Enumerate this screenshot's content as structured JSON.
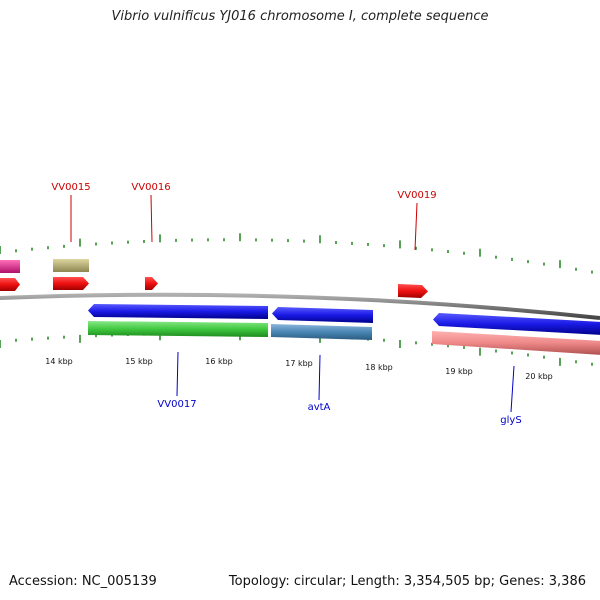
{
  "title": "Vibrio vulnificus YJ016 chromosome I, complete sequence",
  "footer": {
    "accession": "Accession: NC_005139",
    "summary": "Topology: circular; Length: 3,354,505 bp; Genes: 3,386"
  },
  "colors": {
    "backbone": "#7a7a7a",
    "tick": "#2e8b2e",
    "label_red": "#cc0000",
    "label_blue": "#0000cc",
    "label_dark": "#111111"
  },
  "scale_labels": [
    {
      "kbp": 14,
      "label": "14 kbp"
    },
    {
      "kbp": 15,
      "label": "15 kbp"
    },
    {
      "kbp": 16,
      "label": "16 kbp"
    },
    {
      "kbp": 17,
      "label": "17 kbp"
    },
    {
      "kbp": 18,
      "label": "18 kbp"
    },
    {
      "kbp": 19,
      "label": "19 kbp"
    },
    {
      "kbp": 20,
      "label": "20 kbp"
    }
  ],
  "gene_labels": [
    {
      "name": "VV0015",
      "strand": "plus"
    },
    {
      "name": "VV0016",
      "strand": "plus"
    },
    {
      "name": "VV0019",
      "strand": "plus"
    },
    {
      "name": "VV0017",
      "strand": "minus"
    },
    {
      "name": "avtA",
      "strand": "minus"
    },
    {
      "name": "glyS",
      "strand": "minus"
    }
  ],
  "features": [
    {
      "id": "pink-feature",
      "color": "#e0308a"
    },
    {
      "id": "olive-feature",
      "color": "#b8b070"
    },
    {
      "id": "red-gene-left",
      "color": "#ee1111"
    },
    {
      "id": "red-gene-vv0015",
      "color": "#ee1111"
    },
    {
      "id": "red-gene-vv0016",
      "color": "#ee1111"
    },
    {
      "id": "red-gene-vv0019",
      "color": "#ee1111"
    },
    {
      "id": "blue-gene-vv0017",
      "color": "#1a1ae6"
    },
    {
      "id": "blue-gene-avta",
      "color": "#1a1ae6"
    },
    {
      "id": "blue-gene-glys",
      "color": "#1a1ae6"
    },
    {
      "id": "green-cds",
      "color": "#3fc83f"
    },
    {
      "id": "steelblue-cds",
      "color": "#4a86b4"
    },
    {
      "id": "salmon-cds",
      "color": "#ee8888"
    }
  ]
}
